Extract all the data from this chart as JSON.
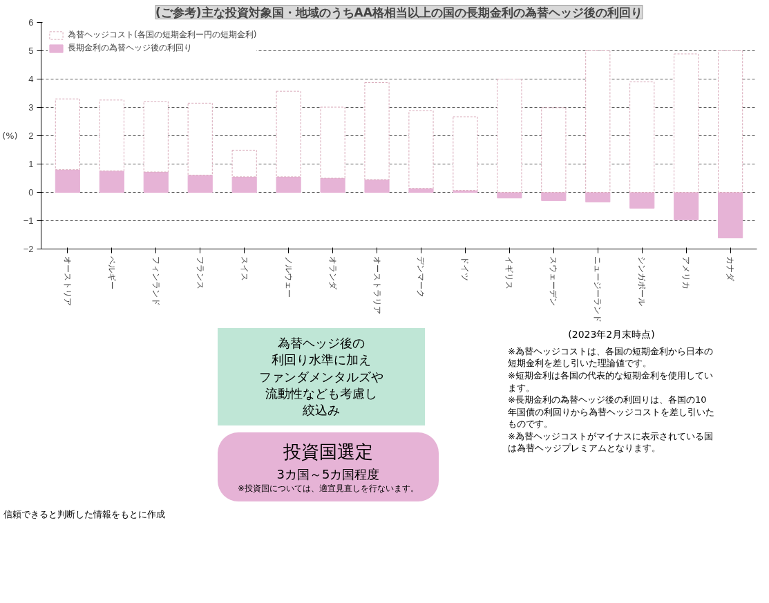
{
  "chart_data": {
    "type": "bar",
    "title": "(ご参考)主な投資対象国・地域のうちAA格相当以上の国の長期金利の為替ヘッジ後の利回り",
    "ylabel": "(%)",
    "categories": [
      "オーストリア",
      "ベルギー",
      "フィンランド",
      "フランス",
      "スイス",
      "ノルウェー",
      "オランダ",
      "オーストラリア",
      "デンマーク",
      "ドイツ",
      "イギリス",
      "スウェーデン",
      "ニュージーランド",
      "シンガポール",
      "アメリカ",
      "カナダ"
    ],
    "stacked": true,
    "series": [
      {
        "name": "長期金利の為替ヘッジ後の利回り",
        "color": "#e6b3d6",
        "values": [
          0.8,
          0.76,
          0.72,
          0.61,
          0.55,
          0.55,
          0.5,
          0.45,
          0.14,
          0.07,
          -0.2,
          -0.29,
          -0.34,
          -0.56,
          -0.97,
          -1.61
        ]
      },
      {
        "name": "為替ヘッジコスト(各国の短期金利ー円の短期金利)",
        "color": "#ffffff",
        "values": [
          2.5,
          2.5,
          2.49,
          2.54,
          0.94,
          3.02,
          2.51,
          3.43,
          2.74,
          2.6,
          4.0,
          2.99,
          5.0,
          3.9,
          4.89,
          5.0
        ]
      }
    ],
    "ylim": [
      -2,
      6
    ],
    "yticks": [
      -2,
      -1,
      0,
      1,
      2,
      3,
      4,
      5,
      6
    ],
    "grid": "y",
    "legend": "top left",
    "annotations": [
      "(2023年2月末時点)",
      "為替ヘッジ後の",
      "利回り水準に加え",
      "ファンダメンタルズや",
      "流動性なども考慮し",
      "絞込み",
      "投資国選定",
      "3カ国～5カ国程度",
      "※投資国については、適宜見直しを行ないます。",
      "※為替ヘッジコストは、各国の短期金利から日本の短期金利を差し引いた理論値です。",
      "※短期金利は各国の代表的な短期金利を使用しています。",
      "※長期金利の為替ヘッジ後の利回りは、各国の10年国債の利回りから為替ヘッジコストを差し引いたものです。",
      "※為替ヘッジコストがマイナスに表示されている国は為替ヘッジプレミアムとなります。",
      "信頼できると判断した情報をもとに作成"
    ]
  }
}
